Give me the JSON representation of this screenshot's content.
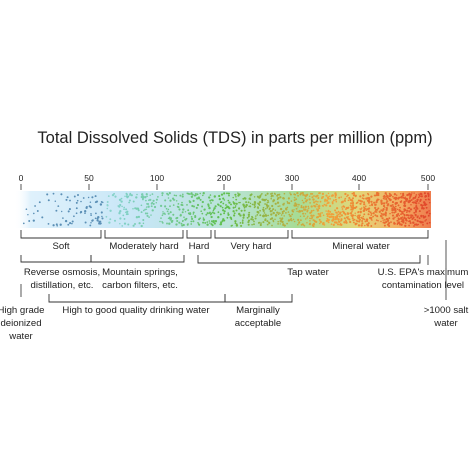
{
  "title": "Total Dissolved Solids (TDS) in parts per million (ppm)",
  "scale": {
    "ticks": [
      {
        "label": "0",
        "value": 0
      },
      {
        "label": "50",
        "value": 50
      },
      {
        "label": "100",
        "value": 100
      },
      {
        "label": "200",
        "value": 200
      },
      {
        "label": "300",
        "value": 300
      },
      {
        "label": "400",
        "value": 400
      },
      {
        "label": "500",
        "value": 500
      }
    ],
    "gradient_colors": [
      "#cfe9fb",
      "#7fd0c4",
      "#5fbf4a",
      "#f2a23a",
      "#e1452b"
    ]
  },
  "hardness": {
    "soft": "Soft",
    "moderately_hard": "Moderately hard",
    "hard": "Hard",
    "very_hard": "Very hard",
    "mineral_water": "Mineral water"
  },
  "sources": {
    "reverse_osmosis": [
      "Reverse osmosis,",
      "distillation, etc."
    ],
    "mountain_springs": [
      "Mountain springs,",
      "carbon filters, etc."
    ],
    "tap_water": "Tap water",
    "epa_max": [
      "U.S. EPA's maximum",
      "contamination level"
    ]
  },
  "quality": {
    "high_grade": [
      "High grade",
      "deionized",
      "water"
    ],
    "drinking": "High to good quality drinking water",
    "marginal": [
      "Marginally",
      "acceptable"
    ],
    "salt": [
      ">1000 salt",
      "water"
    ]
  }
}
